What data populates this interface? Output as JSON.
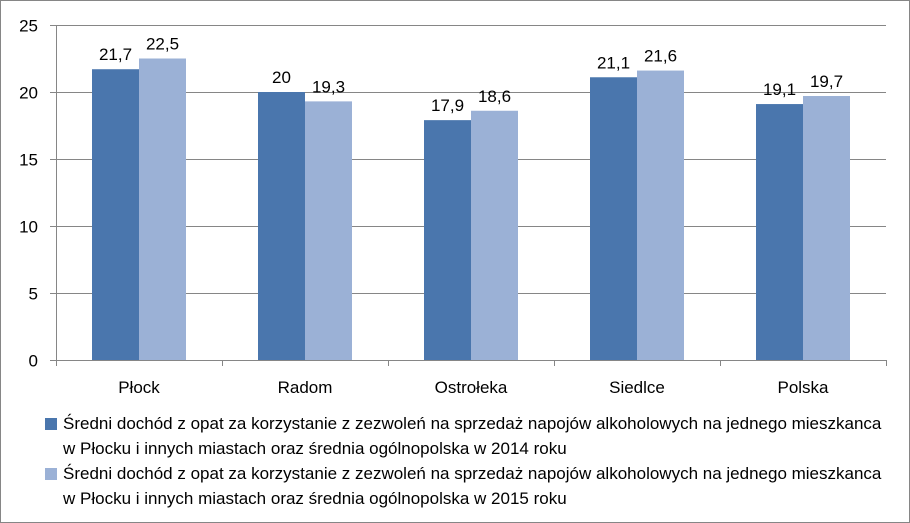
{
  "chart_data": {
    "type": "bar",
    "title": "",
    "xlabel": "",
    "ylabel": "",
    "categories": [
      "Płock",
      "Radom",
      "Ostrołeka",
      "Siedlce",
      "Polska"
    ],
    "ylim": [
      0,
      25
    ],
    "yticks": [
      0,
      5,
      10,
      15,
      20,
      25
    ],
    "grid": true,
    "legend_position": "bottom",
    "data_labels": true,
    "series": [
      {
        "name": "Średni dochód z opat za korzystanie z zezwoleń na sprzedaż napojów alkoholowych na jednego mieszkanca w Płocku i innych miastach oraz średnia ogólnopolska w 2014 roku",
        "values": [
          21.7,
          20,
          17.9,
          21.1,
          19.1
        ],
        "labels": [
          "21,7",
          "20",
          "17,9",
          "21,1",
          "19,1"
        ],
        "color": "#4a76ad"
      },
      {
        "name": "Średni dochód z opat za korzystanie z zezwoleń na sprzedaż napojów alkoholowych na jednego mieszkanca w Płocku i innych miastach oraz średnia ogólnopolska w 2015 roku",
        "values": [
          22.5,
          19.3,
          18.6,
          21.6,
          19.7
        ],
        "labels": [
          "22,5",
          "19,3",
          "18,6",
          "21,6",
          "19,7"
        ],
        "color": "#9bb1d6"
      }
    ]
  }
}
